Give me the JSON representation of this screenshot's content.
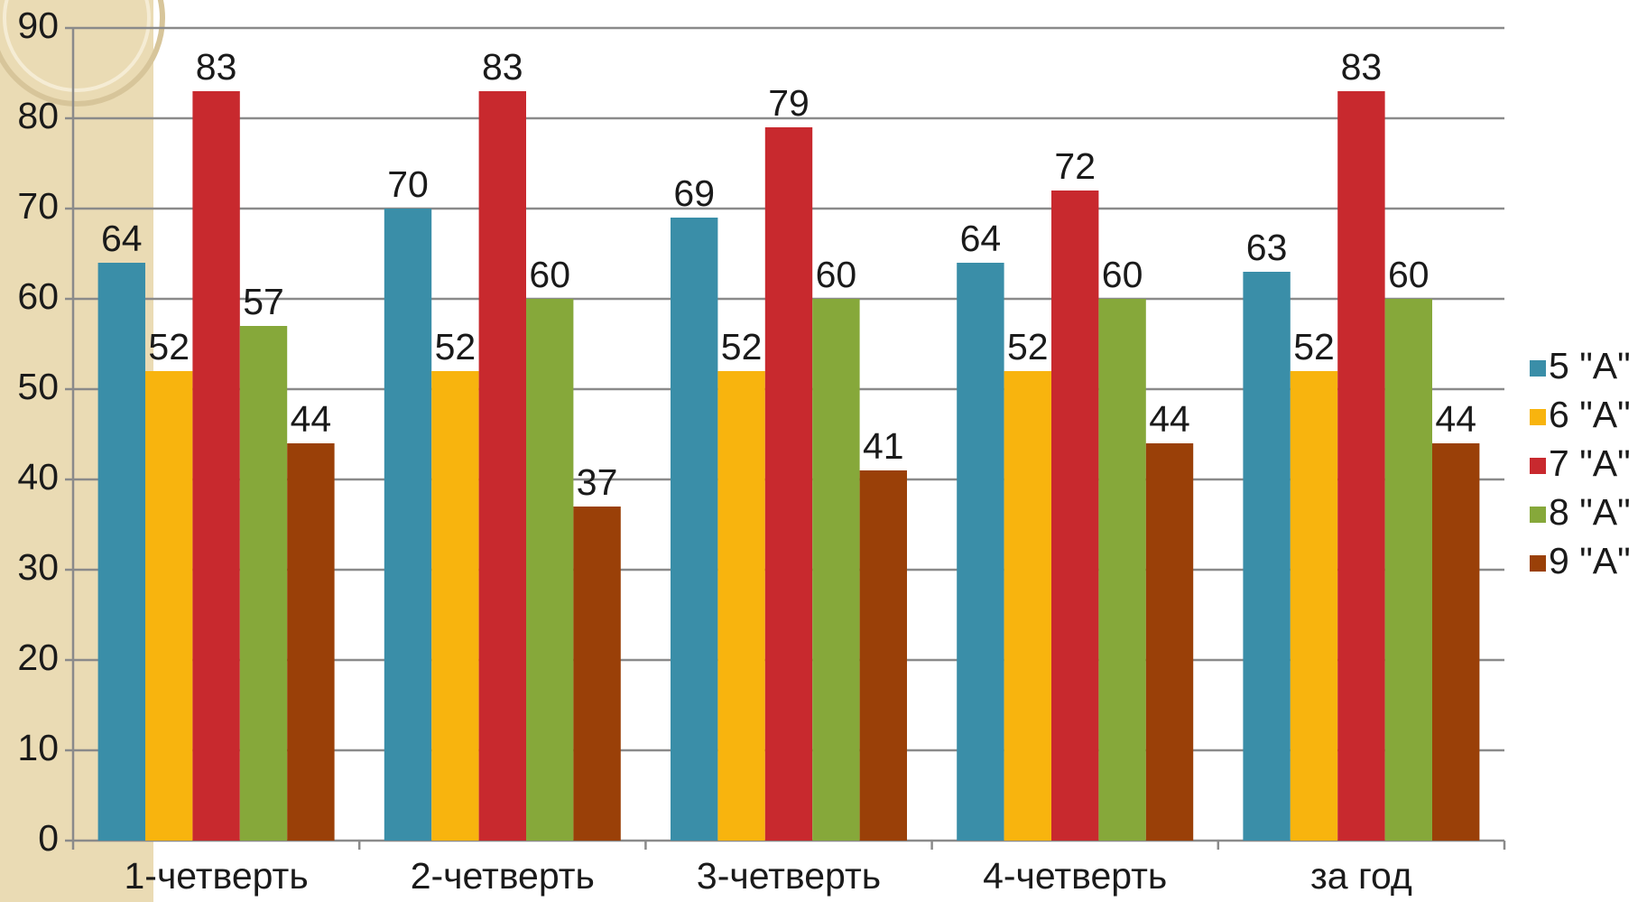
{
  "chart_data": {
    "type": "bar",
    "categories": [
      "1-четверть",
      "2-четверть",
      "3-четверть",
      "4-четверть",
      "за год"
    ],
    "series": [
      {
        "name": "5 \"А\"",
        "color": "#3a8ea8",
        "values": [
          64,
          70,
          69,
          64,
          63
        ]
      },
      {
        "name": "6 \"А\"",
        "color": "#f8b40e",
        "values": [
          52,
          52,
          52,
          52,
          52
        ]
      },
      {
        "name": "7 \"А\"",
        "color": "#c8292e",
        "values": [
          83,
          83,
          79,
          72,
          83
        ]
      },
      {
        "name": "8 \"А\"",
        "color": "#86a83a",
        "values": [
          57,
          60,
          60,
          60,
          60
        ]
      },
      {
        "name": "9 \"А\"",
        "color": "#9a4008",
        "values": [
          44,
          37,
          41,
          44,
          44
        ]
      }
    ],
    "ylim": [
      0,
      90
    ],
    "yticks": [
      0,
      10,
      20,
      30,
      40,
      50,
      60,
      70,
      80,
      90
    ],
    "grid": true,
    "legend": "right"
  }
}
